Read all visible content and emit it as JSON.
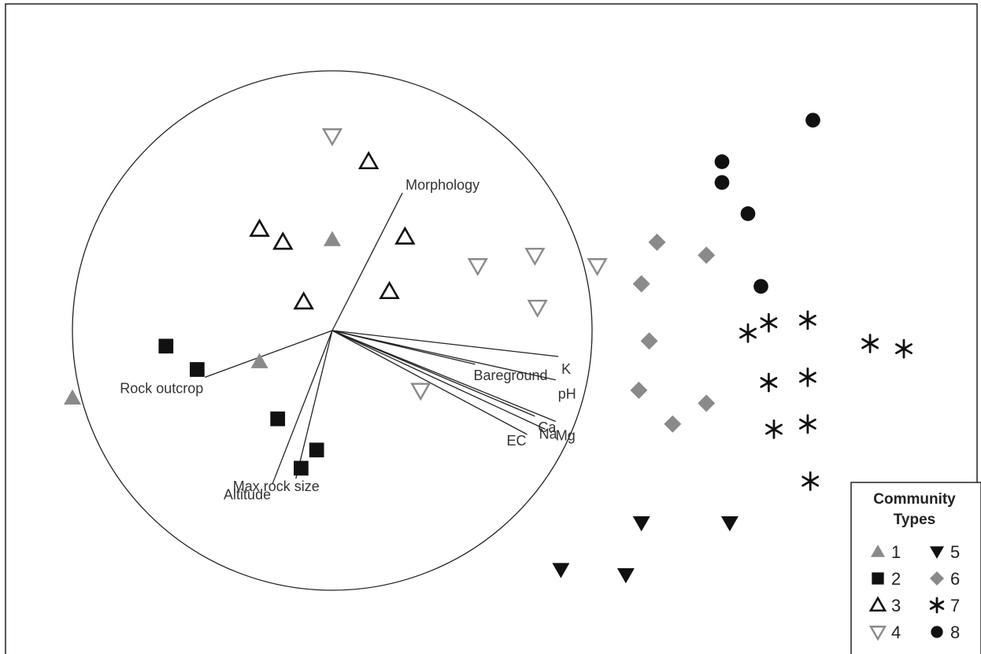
{
  "chart_data": {
    "type": "scatter",
    "title": "",
    "xlabel": "",
    "ylabel": "",
    "grid": false,
    "legend_placement": "bottom-right",
    "xlim": [
      -1.2,
      2.8
    ],
    "ylim": [
      -1.5,
      1.5
    ],
    "correlation_circle_radius": 1.0,
    "colors": {
      "gray": "#8a8a8a",
      "black": "#111111"
    },
    "legend": {
      "title_line1": "Community",
      "title_line2": "Types",
      "entries": [
        {
          "label": "1",
          "marker": "triangle-up-filled",
          "color": "#8a8a8a"
        },
        {
          "label": "2",
          "marker": "square-filled",
          "color": "#111111"
        },
        {
          "label": "3",
          "marker": "triangle-up-open",
          "color": "#111111"
        },
        {
          "label": "4",
          "marker": "triangle-down-open",
          "color": "#8a8a8a"
        },
        {
          "label": "5",
          "marker": "triangle-down-filled",
          "color": "#111111"
        },
        {
          "label": "6",
          "marker": "diamond-filled",
          "color": "#8a8a8a"
        },
        {
          "label": "7",
          "marker": "asterisk",
          "color": "#111111"
        },
        {
          "label": "8",
          "marker": "circle-filled",
          "color": "#111111"
        }
      ]
    },
    "vectors": [
      {
        "name": "Morphology",
        "x": 0.27,
        "y": 0.53
      },
      {
        "name": "Rock outcrop",
        "x": -0.49,
        "y": -0.18
      },
      {
        "name": "Max rock size",
        "x": -0.14,
        "y": -0.57
      },
      {
        "name": "Altitude",
        "x": -0.23,
        "y": -0.59
      },
      {
        "name": "Bareground",
        "x": 0.55,
        "y": -0.13
      },
      {
        "name": "K",
        "x": 0.87,
        "y": -0.1
      },
      {
        "name": "pH",
        "x": 0.86,
        "y": -0.19
      },
      {
        "name": "Mg",
        "x": 0.86,
        "y": -0.35
      },
      {
        "name": "Ca",
        "x": 0.78,
        "y": -0.33
      },
      {
        "name": "Na",
        "x": 0.82,
        "y": -0.38
      },
      {
        "name": "EC",
        "x": 0.75,
        "y": -0.4
      }
    ],
    "series": [
      {
        "name": "1",
        "points": [
          [
            -1.0,
            -0.26
          ],
          [
            0.0,
            0.35
          ],
          [
            -0.28,
            -0.12
          ]
        ]
      },
      {
        "name": "2",
        "points": [
          [
            -0.64,
            -0.06
          ],
          [
            -0.52,
            -0.15
          ],
          [
            -0.21,
            -0.34
          ],
          [
            -0.06,
            -0.46
          ],
          [
            -0.12,
            -0.53
          ]
        ]
      },
      {
        "name": "3",
        "points": [
          [
            0.14,
            0.65
          ],
          [
            -0.28,
            0.39
          ],
          [
            -0.19,
            0.34
          ],
          [
            0.28,
            0.36
          ],
          [
            -0.11,
            0.11
          ],
          [
            0.22,
            0.15
          ]
        ]
      },
      {
        "name": "4",
        "points": [
          [
            0.0,
            0.75
          ],
          [
            0.56,
            0.25
          ],
          [
            0.78,
            0.29
          ],
          [
            1.02,
            0.25
          ],
          [
            0.79,
            0.09
          ],
          [
            0.34,
            -0.23
          ]
        ]
      },
      {
        "name": "5",
        "points": [
          [
            1.19,
            -0.74
          ],
          [
            1.53,
            -0.74
          ],
          [
            0.88,
            -0.92
          ],
          [
            1.13,
            -0.94
          ]
        ]
      },
      {
        "name": "6",
        "points": [
          [
            1.25,
            0.34
          ],
          [
            1.44,
            0.29
          ],
          [
            1.19,
            0.18
          ],
          [
            1.22,
            -0.04
          ],
          [
            1.18,
            -0.23
          ],
          [
            1.44,
            -0.28
          ],
          [
            1.31,
            -0.36
          ]
        ]
      },
      {
        "name": "7",
        "points": [
          [
            1.83,
            0.04
          ],
          [
            1.68,
            0.03
          ],
          [
            1.6,
            -0.01
          ],
          [
            2.07,
            -0.05
          ],
          [
            2.2,
            -0.07
          ],
          [
            1.68,
            -0.2
          ],
          [
            1.83,
            -0.18
          ],
          [
            1.7,
            -0.38
          ],
          [
            1.83,
            -0.36
          ],
          [
            1.84,
            -0.58
          ]
        ]
      },
      {
        "name": "8",
        "points": [
          [
            1.85,
            0.81
          ],
          [
            1.5,
            0.65
          ],
          [
            1.5,
            0.57
          ],
          [
            1.6,
            0.45
          ],
          [
            1.65,
            0.17
          ]
        ]
      }
    ]
  }
}
